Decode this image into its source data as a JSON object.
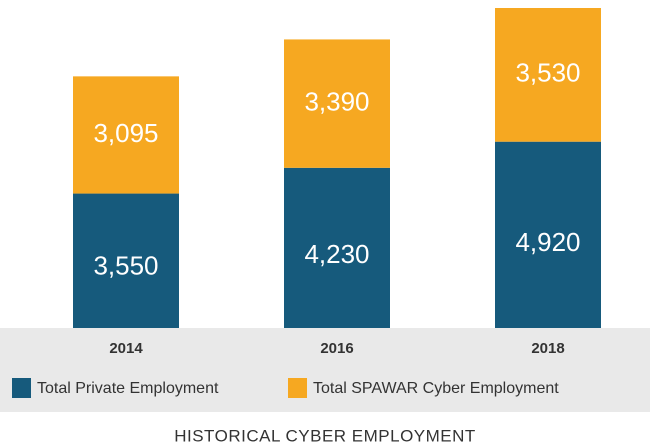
{
  "chart_data": {
    "type": "stacked-bar",
    "title": "HISTORICAL CYBER EMPLOYMENT",
    "categories": [
      "2014",
      "2016",
      "2018"
    ],
    "series": [
      {
        "name": "Total Private Employment",
        "color": "#165a7c",
        "values": [
          3550,
          4230,
          4920
        ],
        "value_labels": [
          "3,550",
          "4,230",
          "4,920"
        ]
      },
      {
        "name": "Total SPAWAR Cyber Employment",
        "color": "#f6a821",
        "values": [
          3095,
          3390,
          3530
        ],
        "value_labels": [
          "3,095",
          "3,390",
          "3,530"
        ]
      }
    ]
  }
}
